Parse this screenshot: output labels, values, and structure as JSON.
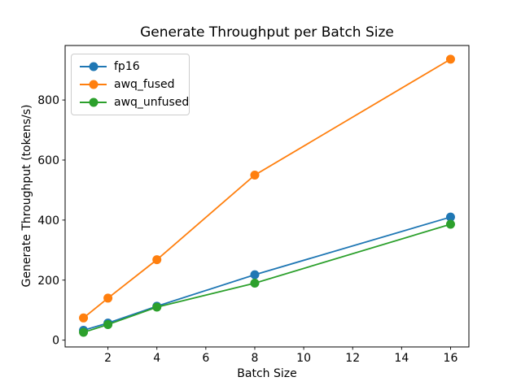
{
  "chart_data": {
    "type": "line",
    "title": "Generate Throughput per Batch Size",
    "xlabel": "Batch Size",
    "ylabel": "Generate Throughput (tokens/s)",
    "x": [
      1,
      2,
      4,
      8,
      16
    ],
    "series": [
      {
        "name": "fp16",
        "color": "#1f77b4",
        "values": [
          33,
          57,
          113,
          218,
          410
        ]
      },
      {
        "name": "awq_fused",
        "color": "#ff7f0e",
        "values": [
          74,
          140,
          268,
          550,
          936
        ]
      },
      {
        "name": "awq_unfused",
        "color": "#2ca02c",
        "values": [
          26,
          52,
          110,
          190,
          386
        ]
      }
    ],
    "xticks": [
      2,
      4,
      6,
      8,
      10,
      12,
      14,
      16
    ],
    "yticks": [
      0,
      200,
      400,
      600,
      800
    ],
    "xlim": [
      0.25,
      16.75
    ],
    "ylim": [
      -22.6,
      981.6
    ],
    "legend_position": "upper left",
    "grid": false,
    "marker": "o"
  }
}
